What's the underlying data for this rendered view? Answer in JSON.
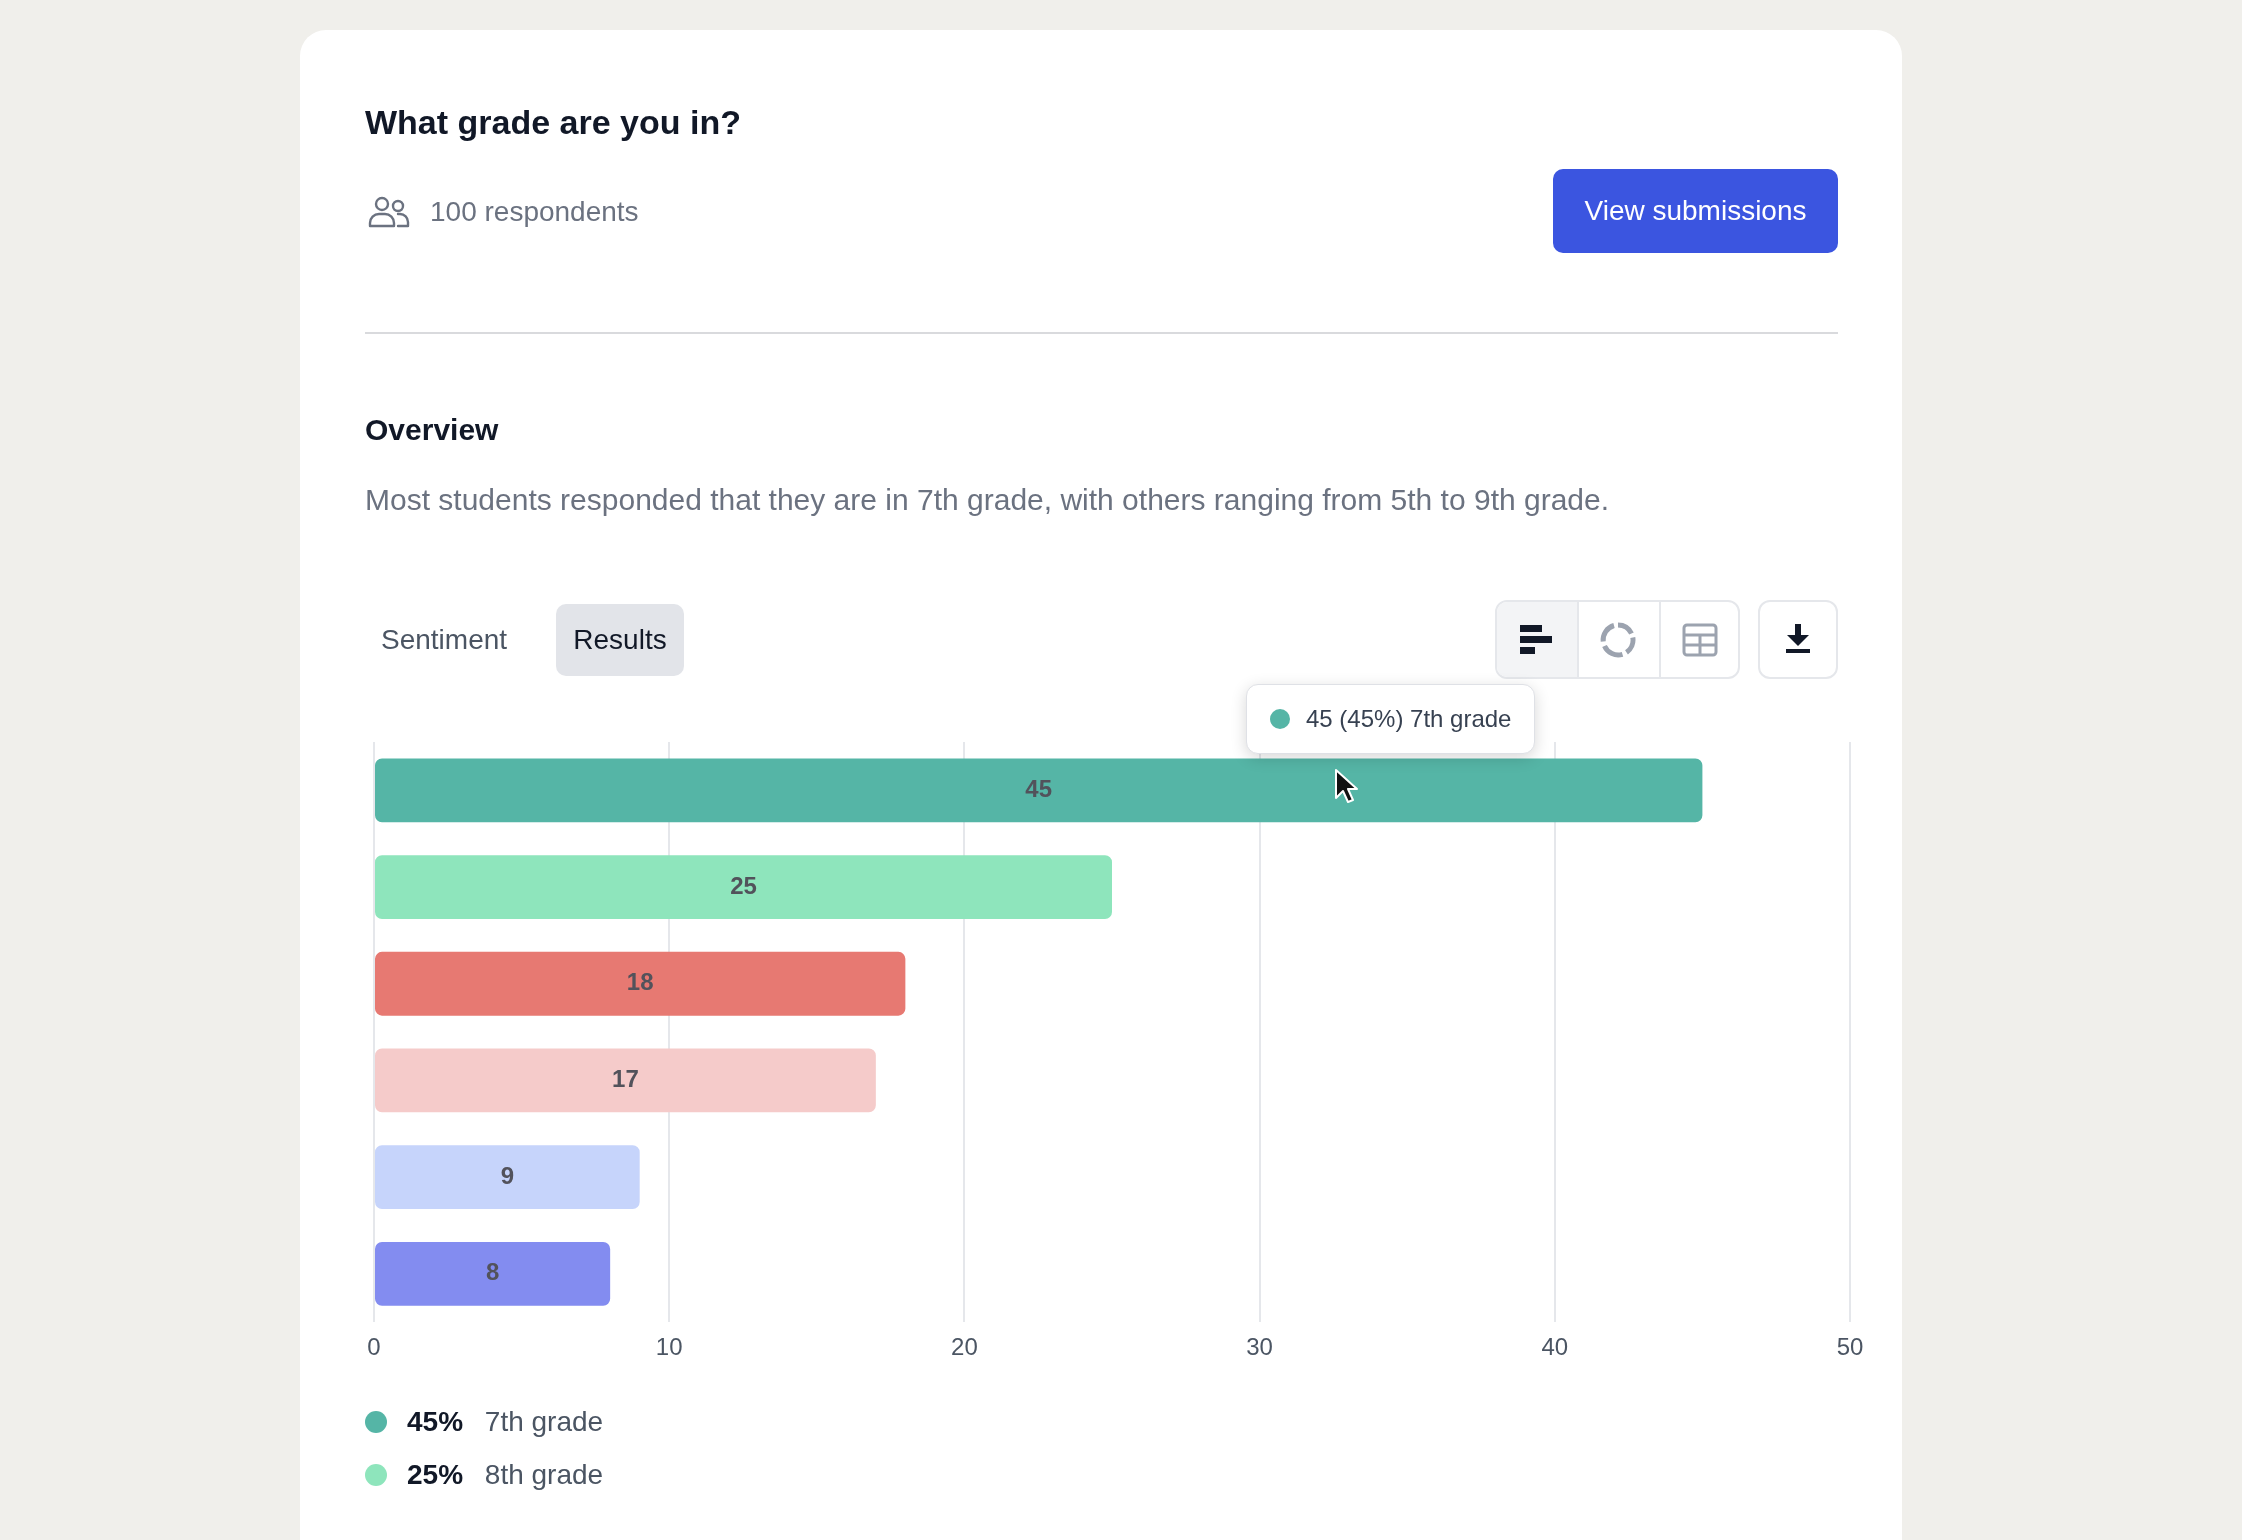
{
  "chart_data": {
    "type": "bar",
    "orientation": "horizontal",
    "title": "What grade are you in?",
    "subtitle": "100 respondents",
    "categories": [
      null,
      null,
      null,
      null,
      null,
      null
    ],
    "series": [
      {
        "name": "45% 7th grade",
        "color": "#55b5a6",
        "values": [
          45,
          null,
          null,
          null,
          null,
          null
        ]
      },
      {
        "name": "25% 8th grade",
        "color": "#8ee5bc",
        "values": [
          null,
          25,
          null,
          null,
          null,
          null
        ]
      },
      {
        "color": "#e77972",
        "values": [
          null,
          null,
          18,
          null,
          null,
          null
        ]
      },
      {
        "color": "#f5cbca",
        "values": [
          null,
          null,
          null,
          17,
          null,
          null
        ]
      },
      {
        "color": "#c6d4fb",
        "values": [
          null,
          null,
          null,
          null,
          9,
          null
        ]
      },
      {
        "color": "#838cf0",
        "values": [
          null,
          null,
          null,
          null,
          null,
          8
        ]
      }
    ],
    "stacked": true,
    "xlim": [
      0,
      50
    ],
    "xticks": [
      0,
      10,
      20,
      30,
      40,
      50
    ],
    "grid": "x",
    "tick_labels": "x",
    "data_labels": true,
    "legend": "bottom",
    "annotations": [
      "View submissions",
      "Overview",
      "Most students responded that they are in 7th grade, with others ranging from 5th to 9th grade.",
      "Sentiment",
      "Results",
      "45 (45%) 7th grade"
    ]
  }
}
